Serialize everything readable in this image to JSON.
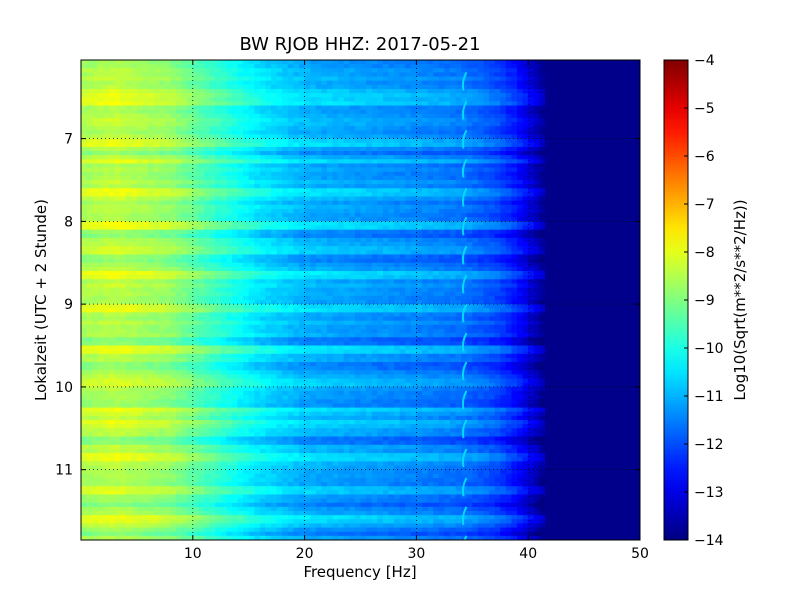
{
  "chart_data": {
    "type": "heatmap",
    "title": "BW RJOB HHZ: 2017-05-21",
    "xlabel": "Frequency [Hz]",
    "ylabel": "Lokalzeit (UTC + 2 Stunde)",
    "xlim": [
      0,
      50
    ],
    "ylim": [
      6.05,
      11.85
    ],
    "y_inverted": true,
    "grid": true,
    "x_ticks": [
      10,
      20,
      30,
      40,
      50
    ],
    "y_ticks": [
      7,
      8,
      9,
      10,
      11
    ],
    "colormap": "jet",
    "colorbar": {
      "label": "Log10(Sqrt(m**2/s**2/Hz))",
      "range": [
        -14,
        -4
      ],
      "ticks": [
        -4,
        -5,
        -6,
        -7,
        -8,
        -9,
        -10,
        -11,
        -12,
        -13,
        -14
      ]
    },
    "spectrum_profile": [
      {
        "f": 0,
        "v": -8.6
      },
      {
        "f": 3,
        "v": -8.4
      },
      {
        "f": 8,
        "v": -8.8
      },
      {
        "f": 12,
        "v": -9.7
      },
      {
        "f": 16,
        "v": -10.5
      },
      {
        "f": 20,
        "v": -11.0
      },
      {
        "f": 25,
        "v": -11.2
      },
      {
        "f": 30,
        "v": -11.4
      },
      {
        "f": 34,
        "v": -11.6
      },
      {
        "f": 37,
        "v": -12.0
      },
      {
        "f": 39,
        "v": -12.6
      },
      {
        "f": 40.5,
        "v": -13.3
      },
      {
        "f": 41.5,
        "v": -13.9
      },
      {
        "f": 50,
        "v": -13.9
      }
    ],
    "tonal_line": {
      "frequency_hz": 34.3,
      "value": -10.6
    },
    "bright_bands_hours": [
      6.45,
      6.55,
      7.05,
      7.25,
      7.65,
      8.05,
      8.35,
      8.65,
      9.05,
      9.55,
      9.95,
      10.3,
      10.45,
      10.85,
      11.25,
      11.6
    ],
    "dark_bands_hours": [
      7.2,
      8.15,
      8.45,
      9.45,
      9.75,
      10.2,
      10.65,
      11.4,
      11.75
    ]
  }
}
